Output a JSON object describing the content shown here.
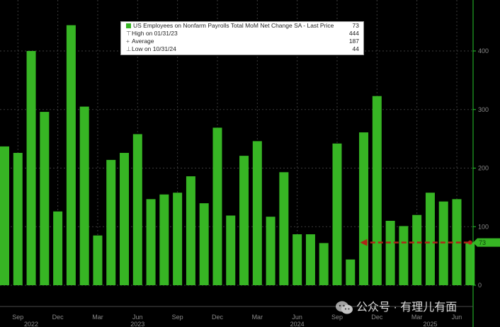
{
  "chart_data": {
    "type": "bar",
    "title": "US Employees on Nonfarm Payrolls Total MoM Net Change SA",
    "values": [
      237,
      226,
      400,
      296,
      126,
      444,
      305,
      85,
      214,
      226,
      258,
      147,
      155,
      158,
      186,
      140,
      269,
      119,
      221,
      246,
      117,
      193,
      87,
      87,
      72,
      242,
      44,
      261,
      323,
      110,
      101,
      120,
      158,
      143,
      147,
      73
    ],
    "ylim": [
      -30,
      470
    ],
    "yticks": [
      "0",
      "100",
      "200",
      "300",
      "400"
    ],
    "ytick_values": [
      0,
      100,
      200,
      300,
      400
    ],
    "last_price_label": "73",
    "last_price": 73,
    "annotation": {
      "type": "dashed-arrow",
      "y": 73,
      "from_bar": 35,
      "to_bar": 27,
      "color": "#b02418"
    },
    "month_ticks": [
      {
        "label": "Sep",
        "bar": 1
      },
      {
        "label": "Dec",
        "bar": 4
      },
      {
        "label": "Mar",
        "bar": 7
      },
      {
        "label": "Jun",
        "bar": 10
      },
      {
        "label": "Sep",
        "bar": 13
      },
      {
        "label": "Dec",
        "bar": 16
      },
      {
        "label": "Mar",
        "bar": 19
      },
      {
        "label": "Jun",
        "bar": 22
      },
      {
        "label": "Sep",
        "bar": 25
      },
      {
        "label": "Dec",
        "bar": 28
      },
      {
        "label": "Mar",
        "bar": 31
      },
      {
        "label": "Jun",
        "bar": 34
      }
    ],
    "year_labels": [
      {
        "label": "2022",
        "bar": 2
      },
      {
        "label": "2023",
        "bar": 10
      },
      {
        "label": "2024",
        "bar": 22
      },
      {
        "label": "2025",
        "bar": 32
      }
    ],
    "grid": true,
    "colors": {
      "bar": "#37b524",
      "background": "#000000",
      "grid": "#3b3b3b",
      "axis": "#28c82d",
      "axis_text": "#8a8a8a"
    }
  },
  "legend": {
    "series_name": "US Employees on Nonfarm Payrolls Total MoM Net Change SA - Last Price",
    "series_value": "73",
    "rows": [
      {
        "mark": "⊤",
        "label": "High on 01/31/23",
        "value": "444"
      },
      {
        "mark": "+",
        "label": "Average",
        "value": "187"
      },
      {
        "mark": "⊥",
        "label": "Low on 10/31/24",
        "value": "44"
      }
    ]
  },
  "watermark": {
    "text": "公众号 · 有理儿有面",
    "icon": "wechat-icon"
  }
}
